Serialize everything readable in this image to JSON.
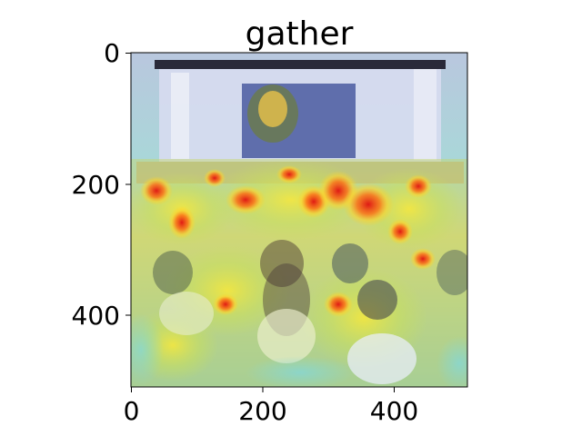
{
  "title": "gather",
  "axes": {
    "x_ticks": [
      "0",
      "200",
      "400"
    ],
    "y_ticks": [
      "0",
      "200",
      "400"
    ]
  },
  "image": {
    "description_hidden": false,
    "colormap": "jet-overlay"
  }
}
